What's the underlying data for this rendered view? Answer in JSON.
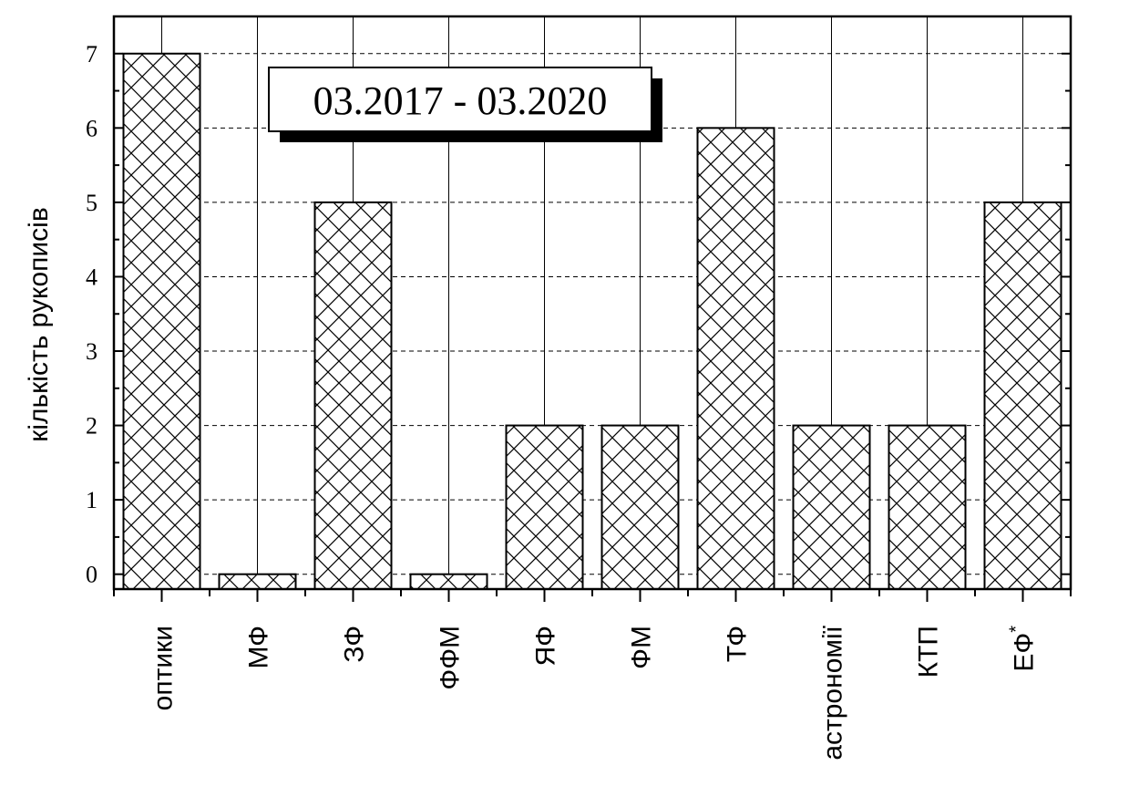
{
  "chart_data": {
    "type": "bar",
    "title": "03.2017 - 03.2020",
    "ylabel": "кількість рукописів",
    "xlabel": "",
    "categories": [
      "оптики",
      "МФ",
      "ЗФ",
      "ФФМ",
      "ЯФ",
      "ФМ",
      "ТФ",
      "астрономії",
      "КТП",
      "ЕФ"
    ],
    "category_superscripts": [
      "",
      "",
      "",
      "",
      "",
      "",
      "",
      "",
      "",
      "*"
    ],
    "values": [
      7,
      0,
      5,
      0,
      2,
      2,
      6,
      2,
      2,
      5
    ],
    "ylim": [
      -0.2,
      7.5
    ],
    "yticks": [
      "0",
      "1",
      "2",
      "3",
      "4",
      "5",
      "6",
      "7"
    ],
    "grid": "horizontal dashed",
    "bar_fill": "cross-hatch",
    "colors": {
      "bar_fill": "#ffffff",
      "hatch": "#000000",
      "axis": "#000000",
      "grid": "#000000"
    }
  }
}
